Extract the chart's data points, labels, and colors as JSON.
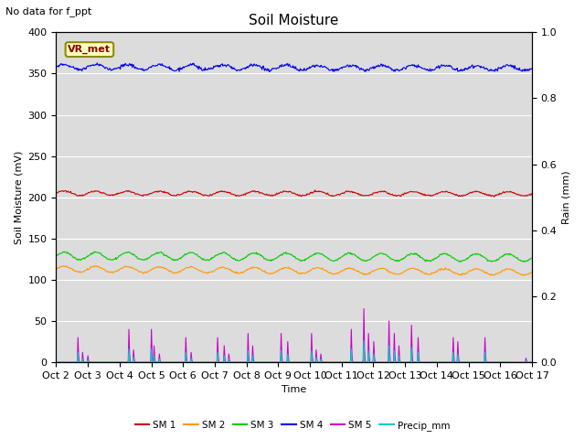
{
  "title": "Soil Moisture",
  "subtitle": "No data for f_ppt",
  "xlabel": "Time",
  "ylabel_left": "Soil Moisture (mV)",
  "ylabel_right": "Rain (mm)",
  "legend_label": "VR_met",
  "ylim_left": [
    0,
    400
  ],
  "ylim_right": [
    0,
    1.0
  ],
  "x_ticks_labels": [
    "Oct 2",
    "Oct 3",
    "Oct 4",
    "Oct 5",
    "Oct 6",
    "Oct 7",
    "Oct 8",
    "Oct 9",
    "Oct 10",
    "Oct 11",
    "Oct 12",
    "Oct 13",
    "Oct 14",
    "Oct 15",
    "Oct 16",
    "Oct 17"
  ],
  "sm1_color": "#cc0000",
  "sm2_color": "#ff9900",
  "sm3_color": "#00cc00",
  "sm4_color": "#0000ee",
  "sm5_color": "#cc00cc",
  "precip_color": "#00cccc",
  "background_color": "#dcdcdc",
  "sm1_base": 205,
  "sm2_base": 113,
  "sm3_base": 129,
  "sm4_base": 358,
  "n_days": 15,
  "n_pts_per_day": 48
}
